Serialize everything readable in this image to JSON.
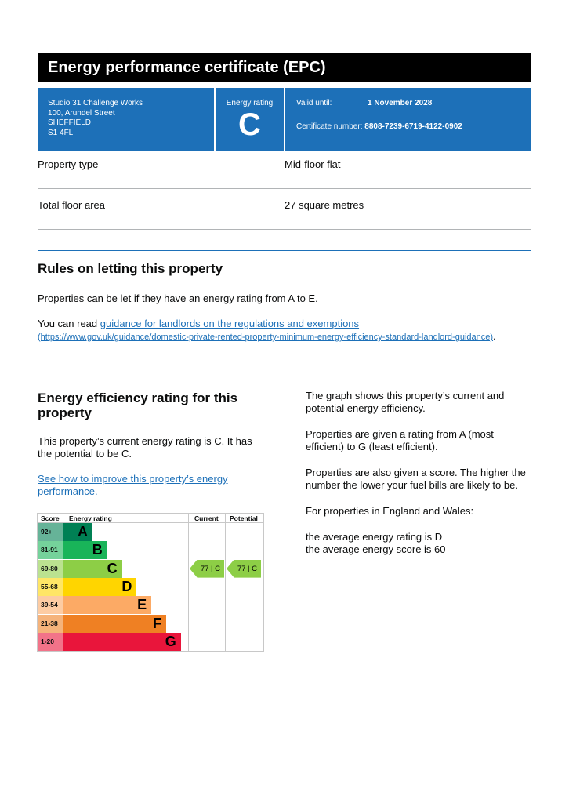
{
  "title": "Energy performance certificate (EPC)",
  "address": [
    "Studio 31 Challenge Works",
    "100, Arundel Street",
    "SHEFFIELD",
    "S1 4FL"
  ],
  "energy_rating_label": "Energy rating",
  "energy_rating": "C",
  "valid_until_label": "Valid until:",
  "valid_until": "1 November 2028",
  "cert_label": "Certificate number:",
  "cert_number": "8808-7239-6719-4122-0902",
  "property": [
    {
      "label": "Property type",
      "value": "Mid-floor flat"
    },
    {
      "label": "Total floor area",
      "value": "27 square metres"
    }
  ],
  "rules": {
    "heading": "Rules on letting this property",
    "p1": "Properties can be let if they have an energy rating from A to E.",
    "p2_prefix": "You can read ",
    "link": "guidance for landlords on the regulations and exemptions",
    "url_text": "(https://www.gov.uk/guidance/domestic-private-rented-property-minimum-energy-efficiency-standard-landlord-guidance)",
    "p2_suffix": "."
  },
  "efficiency": {
    "heading": "Energy efficiency rating for this property",
    "p1": "This property’s current energy rating is C. It has the potential to be C.",
    "link": "See how to improve this property’s energy performance.",
    "right": [
      "The graph shows this property’s current and potential energy efficiency.",
      "Properties are given a rating from A (most efficient) to G (least efficient).",
      "Properties are also given a score. The higher the number the lower your fuel bills are likely to be.",
      "For properties in England and Wales:"
    ],
    "avg1": "the average energy rating is D",
    "avg2": "the average energy score is 60"
  },
  "chart_data": {
    "type": "table",
    "headers": [
      "Score",
      "Energy rating",
      "Current",
      "Potential"
    ],
    "bands": [
      {
        "score": "92+",
        "letter": "A",
        "color": "#008054",
        "tint": "#66b398"
      },
      {
        "score": "81-91",
        "letter": "B",
        "color": "#19b459",
        "tint": "#75d29b"
      },
      {
        "score": "69-80",
        "letter": "C",
        "color": "#8dce46",
        "tint": "#bbe290"
      },
      {
        "score": "55-68",
        "letter": "D",
        "color": "#ffd500",
        "tint": "#ffe666"
      },
      {
        "score": "39-54",
        "letter": "E",
        "color": "#fcaa65",
        "tint": "#fdcca3"
      },
      {
        "score": "21-38",
        "letter": "F",
        "color": "#ef8023",
        "tint": "#f5b37b"
      },
      {
        "score": "1-20",
        "letter": "G",
        "color": "#e9153b",
        "tint": "#f27389"
      }
    ],
    "current": {
      "score": 77,
      "rating": "C",
      "text": "77 |  C"
    },
    "potential": {
      "score": 77,
      "rating": "C",
      "text": "77 |  C"
    }
  }
}
